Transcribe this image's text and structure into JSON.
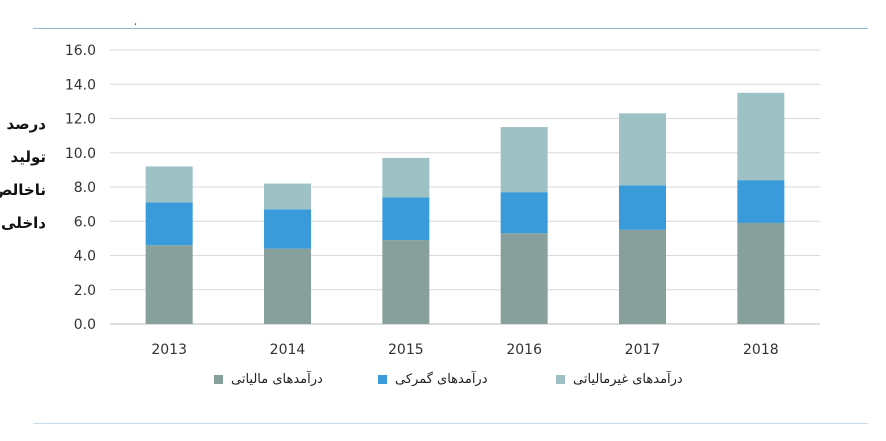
{
  "header": {
    "mark": "،"
  },
  "ylabel_lines": [
    "درصد",
    "تولید",
    "ناخالص",
    "داخلی"
  ],
  "chart_data": {
    "type": "bar",
    "stacked": true,
    "categories": [
      "2013",
      "2014",
      "2015",
      "2016",
      "2017",
      "2018"
    ],
    "series": [
      {
        "name": "درآمدهای مالیاتی",
        "color": "#88a09b",
        "values": [
          4.6,
          4.4,
          4.9,
          5.3,
          5.5,
          5.9
        ]
      },
      {
        "name": "درآمدهای گمرکی",
        "color": "#3a9bdb",
        "values": [
          2.5,
          2.3,
          2.5,
          2.4,
          2.6,
          2.5
        ]
      },
      {
        "name": "درآمدهای غیرمالیاتی",
        "color": "#9dc1c5",
        "values": [
          2.1,
          1.5,
          2.3,
          3.8,
          4.2,
          5.1
        ]
      }
    ],
    "ylim": [
      0,
      16
    ],
    "yticks": [
      "0.0",
      "2.0",
      "4.0",
      "6.0",
      "8.0",
      "10.0",
      "12.0",
      "14.0",
      "16.0"
    ],
    "grid": true,
    "legend_position": "bottom"
  }
}
